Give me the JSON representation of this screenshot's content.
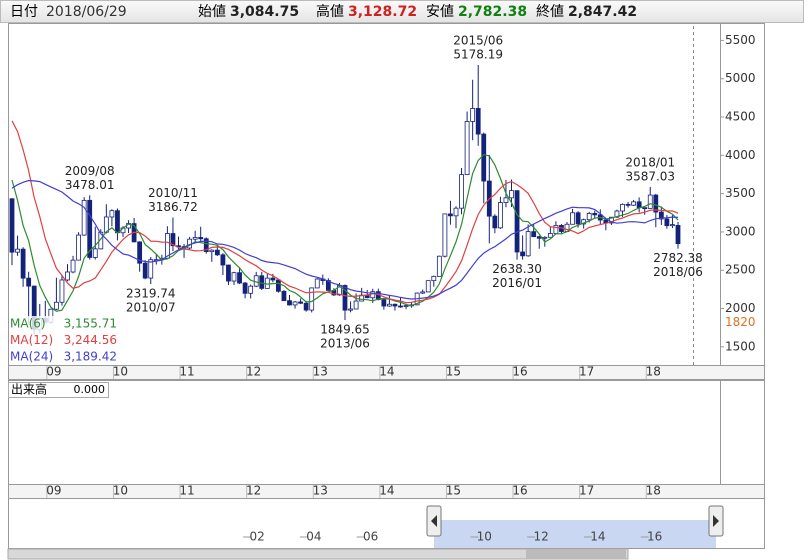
{
  "header": {
    "items": [
      {
        "label": "日付",
        "value": "2018/06/29",
        "color": "#333333"
      },
      {
        "label": "始値",
        "value": "3,084.75",
        "color": "#222222"
      },
      {
        "label": "高値",
        "value": "3,128.72",
        "color": "#d02020"
      },
      {
        "label": "安値",
        "value": "2,782.38",
        "color": "#108010"
      },
      {
        "label": "終値",
        "value": "2,847.42",
        "color": "#222222"
      }
    ]
  },
  "chart_data": {
    "type": "candlestick",
    "categories": [
      null,
      null,
      null,
      null,
      null,
      null,
      null,
      "09",
      null,
      null,
      null,
      null,
      null,
      null,
      null,
      null,
      null,
      null,
      null,
      "10",
      null,
      null,
      null,
      null,
      null,
      null,
      null,
      null,
      null,
      null,
      null,
      "11",
      null,
      null,
      null,
      null,
      null,
      null,
      null,
      null,
      null,
      null,
      null,
      "12",
      null,
      null,
      null,
      null,
      null,
      null,
      null,
      null,
      null,
      null,
      null,
      "13",
      null,
      null,
      null,
      null,
      null,
      null,
      null,
      null,
      null,
      null,
      null,
      "14",
      null,
      null,
      null,
      null,
      null,
      null,
      null,
      null,
      null,
      null,
      null,
      "15",
      null,
      null,
      null,
      null,
      null,
      null,
      null,
      null,
      null,
      null,
      null,
      "16",
      null,
      null,
      null,
      null,
      null,
      null,
      null,
      null,
      null,
      null,
      null,
      "17",
      null,
      null,
      null,
      null,
      null,
      null,
      null,
      null,
      null,
      null,
      null,
      "18",
      null,
      null,
      null,
      null,
      null
    ],
    "open": [
      3433,
      2736,
      2775,
      2397,
      2293,
      1729,
      1871,
      1821,
      1991,
      2082,
      2373,
      2477,
      2632,
      2959,
      3412,
      2667,
      2779,
      2996,
      3195,
      3277,
      2989,
      3051,
      3109,
      2870,
      2592,
      2398,
      2638,
      2638,
      2656,
      2979,
      2820,
      2808,
      2790,
      2905,
      2928,
      2911,
      2743,
      2762,
      2701,
      2568,
      2359,
      2468,
      2333,
      2199,
      2292,
      2428,
      2263,
      2397,
      2373,
      2225,
      2103,
      2047,
      2086,
      2069,
      1980,
      2269,
      2385,
      2366,
      2237,
      2178,
      2301,
      1979,
      1994,
      2098,
      2175,
      2141,
      2220,
      2116,
      2033,
      2056,
      2033,
      2026,
      2039,
      2048,
      2202,
      2217,
      2364,
      2420,
      2683,
      3235,
      3210,
      3310,
      3748,
      4442,
      4612,
      4277,
      3664,
      3206,
      3053,
      3383,
      3445,
      3539,
      2738,
      2688,
      3004,
      2938,
      2917,
      2930,
      2979,
      3085,
      3005,
      3100,
      3250,
      3104,
      3159,
      3242,
      3223,
      3155,
      3117,
      3192,
      3273,
      3360,
      3349,
      3393,
      3317,
      3307,
      3481,
      3259,
      3169,
      3082,
      3084.75
    ],
    "high": [
      3440,
      2952,
      2800,
      2480,
      2300,
      2060,
      2100,
      2000,
      2403,
      2430,
      2579,
      2688,
      2997,
      3454,
      3478.01,
      3069,
      3036,
      3361,
      3296,
      3306,
      3076,
      3153,
      3181,
      2879,
      2631,
      2672,
      2705,
      2702,
      3074,
      3186.72,
      2940,
      2842,
      2935,
      3015,
      3067,
      2930,
      2774,
      2827,
      2723,
      2572,
      2480,
      2536,
      2346,
      2313,
      2479,
      2478,
      2455,
      2453,
      2374,
      2240,
      2176,
      2100,
      2132,
      2099,
      2276,
      2398,
      2444,
      2395,
      2266,
      2334,
      2314,
      2093,
      2198,
      2270,
      2243,
      2258,
      2260,
      2128,
      2177,
      2066,
      2146,
      2063,
      2088,
      2210,
      2248,
      2366,
      2431,
      2690,
      3239,
      3406,
      3335,
      3835,
      4572,
      4986,
      5178.19,
      4297,
      4006,
      3231,
      3459,
      3678,
      3684,
      3539,
      2955,
      3098,
      3097,
      2951,
      2944,
      3071,
      3140,
      3102,
      3130,
      3301,
      3271,
      3174,
      3262,
      3277,
      3295,
      3159,
      3193,
      3291,
      3372,
      3392,
      3418,
      3451,
      3317,
      3587.03,
      3496,
      3333,
      3220,
      3219,
      3128.72
    ],
    "low": [
      2566,
      2688,
      2284,
      1802,
      1664,
      1679,
      1814,
      1800,
      1980,
      2038,
      2356,
      2460,
      2630,
      2950,
      2639,
      2639,
      2770,
      2980,
      3073,
      2890,
      2934,
      2986,
      2865,
      2481,
      2382,
      2319.74,
      2574,
      2573,
      2640,
      2749,
      2774,
      2661,
      2770,
      2861,
      2880,
      2717,
      2610,
      2686,
      2437,
      2307,
      2307,
      2319,
      2134,
      2132,
      2279,
      2242,
      2259,
      2343,
      2207,
      2100,
      2038,
      1999,
      2058,
      1959,
      1949,
      2264,
      2309,
      2232,
      2164,
      2166,
      1849.65,
      1951,
      1991,
      2093,
      2135,
      2073,
      2107,
      1985,
      2022,
      1974,
      2011,
      1991,
      2011,
      2042,
      2190,
      2213,
      2286,
      2417,
      2667,
      3095,
      3050,
      3230,
      3741,
      4198,
      4124,
      3373,
      2850,
      2983,
      3039,
      3322,
      3327,
      2638.3,
      2639,
      2676,
      2932,
      2781,
      2807,
      2929,
      2970,
      2969,
      3000,
      3096,
      3056,
      3044,
      3123,
      3180,
      3099,
      3022,
      3091,
      3184,
      3197,
      3317,
      3339,
      3254,
      3224,
      3306,
      3062,
      3091,
      3041,
      3050,
      2782.38
    ],
    "close": [
      2736,
      2775,
      2397,
      2293,
      1729,
      1871,
      1821,
      1991,
      2082,
      2373,
      2477,
      2632,
      2959,
      3412,
      2667,
      2779,
      2996,
      3195,
      3277,
      2989,
      3051,
      3109,
      2870,
      2592,
      2398,
      2638,
      2638,
      2656,
      2979,
      2820,
      2808,
      2790,
      2905,
      2928,
      2911,
      2743,
      2762,
      2701,
      2568,
      2359,
      2468,
      2333,
      2199,
      2292,
      2428,
      2263,
      2397,
      2373,
      2225,
      2103,
      2047,
      2086,
      2069,
      1980,
      2269,
      2385,
      2366,
      2237,
      2178,
      2301,
      1979,
      1994,
      2098,
      2175,
      2141,
      2220,
      2116,
      2033,
      2056,
      2033,
      2026,
      2039,
      2048,
      2202,
      2217,
      2364,
      2420,
      2683,
      3235,
      3210,
      3310,
      3748,
      4442,
      4612,
      4277,
      3664,
      3206,
      3053,
      3383,
      3445,
      3539,
      2738,
      2688,
      3004,
      2938,
      2917,
      2930,
      2979,
      3085,
      3005,
      3100,
      3250,
      3104,
      3159,
      3242,
      3223,
      3155,
      3117,
      3192,
      3273,
      3360,
      3349,
      3393,
      3317,
      3307,
      3481,
      3259,
      3169,
      3082,
      3095.47,
      2847.42
    ],
    "up_color": "#ffffff",
    "down_color": "#14237a",
    "wick_color": "#14237a",
    "series": [
      {
        "name": "MA(6)",
        "latest": "3,155.71",
        "color": "#2e8b2e",
        "values": [
          3678,
          3410,
          3085,
          2888,
          2561,
          2300,
          2148,
          2017,
          1965,
          1978,
          2103,
          2229,
          2419,
          2656,
          2753,
          2821,
          2908,
          3001,
          3054,
          2984,
          3048,
          3103,
          3082,
          2981,
          2835,
          2776,
          2708,
          2632,
          2650,
          2688,
          2757,
          2782,
          2826,
          2872,
          2860,
          2848,
          2840,
          2825,
          2769,
          2674,
          2600,
          2532,
          2438,
          2370,
          2347,
          2331,
          2319,
          2325,
          2330,
          2298,
          2235,
          2205,
          2151,
          2085,
          2092,
          2139,
          2193,
          2218,
          2236,
          2289,
          2241,
          2176,
          2131,
          2121,
          2115,
          2101,
          2124,
          2131,
          2124,
          2100,
          2081,
          2051,
          2039,
          2067,
          2094,
          2149,
          2215,
          2322,
          2520,
          2688,
          2870,
          3101,
          3438,
          3760,
          3933,
          4009,
          3992,
          3876,
          3699,
          3505,
          3382,
          3227,
          3141,
          3133,
          3059,
          2971,
          2869,
          2909,
          2976,
          2976,
          3003,
          3058,
          3087,
          3117,
          3143,
          3180,
          3189,
          3167,
          3181,
          3200,
          3220,
          3241,
          3281,
          3314,
          3333,
          3368,
          3351,
          3321,
          3269,
          3232,
          3155.71
        ]
      },
      {
        "name": "MA(12)",
        "latest": "3,244.56",
        "color": "#e04040",
        "values": [
          4450,
          4308,
          4073,
          3802,
          3449,
          3199,
          2913,
          2713,
          2525,
          2433,
          2332,
          2265,
          2283,
          2336,
          2359,
          2399,
          2505,
          2615,
          2737,
          2820,
          2901,
          2962,
          2995,
          2991,
          2945,
          2880,
          2878,
          2867,
          2866,
          2835,
          2796,
          2779,
          2767,
          2752,
          2755,
          2768,
          2798,
          2803,
          2798,
          2773,
          2730,
          2690,
          2639,
          2597,
          2558,
          2502,
          2459,
          2429,
          2384,
          2334,
          2291,
          2268,
          2235,
          2205,
          2211,
          2219,
          2214,
          2211,
          2193,
          2187,
          2167,
          2158,
          2162,
          2169,
          2175,
          2195,
          2183,
          2153,
          2127,
          2110,
          2098,
          2076,
          2082,
          2099,
          2109,
          2125,
          2148,
          2186,
          2280,
          2378,
          2482,
          2625,
          2827,
          3041,
          3227,
          3349,
          3431,
          3488,
          3569,
          3632,
          3657,
          3618,
          3566,
          3504,
          3379,
          3238,
          3125,
          3068,
          3058,
          3054,
          3031,
          3014,
          2978,
          3013,
          3059,
          3078,
          3096,
          3112,
          3134,
          3159,
          3182,
          3210,
          3235,
          3240,
          3257,
          3284,
          3286,
          3281,
          3275,
          3273,
          3244.56
        ]
      },
      {
        "name": "MA(24)",
        "latest": "3,189.42",
        "color": "#4040d0",
        "values": [
          3569,
          3617,
          3648,
          3671,
          3666,
          3657,
          3621,
          3588,
          3555,
          3521,
          3464,
          3403,
          3367,
          3322,
          3216,
          3101,
          2977,
          2907,
          2825,
          2767,
          2713,
          2698,
          2664,
          2628,
          2614,
          2608,
          2619,
          2633,
          2686,
          2725,
          2767,
          2800,
          2834,
          2857,
          2875,
          2880,
          2872,
          2842,
          2838,
          2820,
          2798,
          2763,
          2718,
          2688,
          2663,
          2627,
          2607,
          2599,
          2591,
          2569,
          2545,
          2521,
          2483,
          2448,
          2425,
          2408,
          2386,
          2357,
          2326,
          2308,
          2276,
          2246,
          2227,
          2219,
          2205,
          2200,
          2197,
          2186,
          2171,
          2161,
          2146,
          2132,
          2125,
          2129,
          2136,
          2147,
          2162,
          2191,
          2232,
          2266,
          2305,
          2368,
          2463,
          2559,
          2655,
          2724,
          2770,
          2807,
          2859,
          2909,
          2969,
          2998,
          3024,
          3065,
          3103,
          3140,
          3176,
          3209,
          3245,
          3271,
          3300,
          3323,
          3318,
          3316,
          3313,
          3291,
          3238,
          3175,
          3130,
          3114,
          3120,
          3132,
          3133,
          3127,
          3118,
          3149,
          3173,
          3180,
          3186,
          3193,
          3189.42
        ]
      }
    ],
    "ylim": [
      1250,
      5740
    ],
    "yticks": [
      1500,
      2000,
      2500,
      3000,
      3500,
      4000,
      4500,
      5000,
      5500
    ],
    "grid": false,
    "price_marker": {
      "value": 1820,
      "color": "#e07020"
    },
    "annotations": [
      {
        "date": "2009/08",
        "value": 3478.01,
        "position": "above"
      },
      {
        "date": "2010/07",
        "value": 2319.74,
        "position": "below"
      },
      {
        "date": "2010/11",
        "value": 3186.72,
        "position": "above"
      },
      {
        "date": "2013/06",
        "value": 1849.65,
        "position": "below"
      },
      {
        "date": "2015/06",
        "value": 5178.19,
        "position": "above"
      },
      {
        "date": "2016/01",
        "value": {
          "value": 2638.3,
          "label": "2638.30"
        },
        "position": "below"
      },
      {
        "date": "2018/01",
        "value": 3587.03,
        "position": "above"
      },
      {
        "date": "2018/06",
        "value": 2782.38,
        "position": "below"
      }
    ]
  },
  "volume_panel": {
    "title": "出来高",
    "value": "0.000"
  },
  "navigator": {
    "xlim": [
      1993.3,
      2018.3
    ],
    "xticks": [
      {
        "value": 2002,
        "label": "02"
      },
      {
        "value": 2004,
        "label": "04"
      },
      {
        "value": 2006,
        "label": "06"
      },
      {
        "value": 2010,
        "label": "10"
      },
      {
        "value": 2012,
        "label": "12"
      },
      {
        "value": 2014,
        "label": "14"
      },
      {
        "value": 2016,
        "label": "16"
      }
    ]
  }
}
